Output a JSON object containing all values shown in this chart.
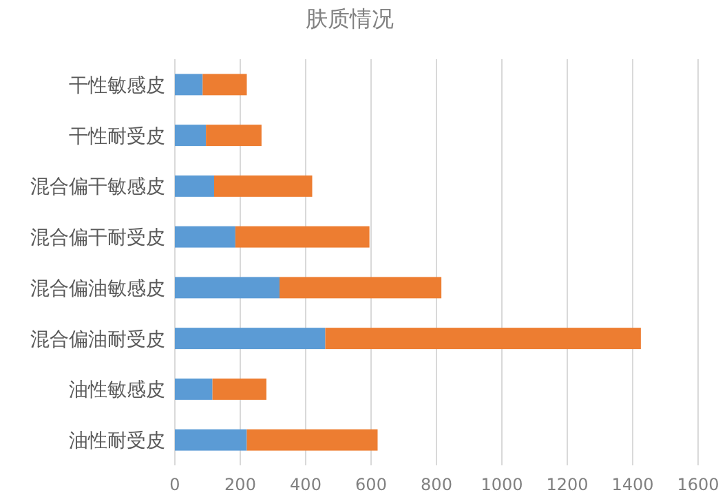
{
  "chart_data": {
    "type": "bar",
    "title": "肤质情况",
    "orientation": "horizontal",
    "stacked": true,
    "categories": [
      "干性敏感皮",
      "干性耐受皮",
      "混合偏干敏感皮",
      "混合偏干耐受皮",
      "混合偏油敏感皮",
      "混合偏油耐受皮",
      "油性敏感皮",
      "油性耐受皮"
    ],
    "series": [
      {
        "color": "#5b9bd5",
        "values": [
          85,
          95,
          120,
          185,
          320,
          460,
          115,
          220
        ]
      },
      {
        "color": "#ed7d31",
        "values": [
          135,
          170,
          300,
          410,
          495,
          965,
          165,
          400
        ]
      }
    ],
    "xlim": [
      0,
      1600
    ],
    "xticks": [
      0,
      200,
      400,
      600,
      800,
      1000,
      1200,
      1400,
      1600
    ],
    "grid": "x"
  }
}
